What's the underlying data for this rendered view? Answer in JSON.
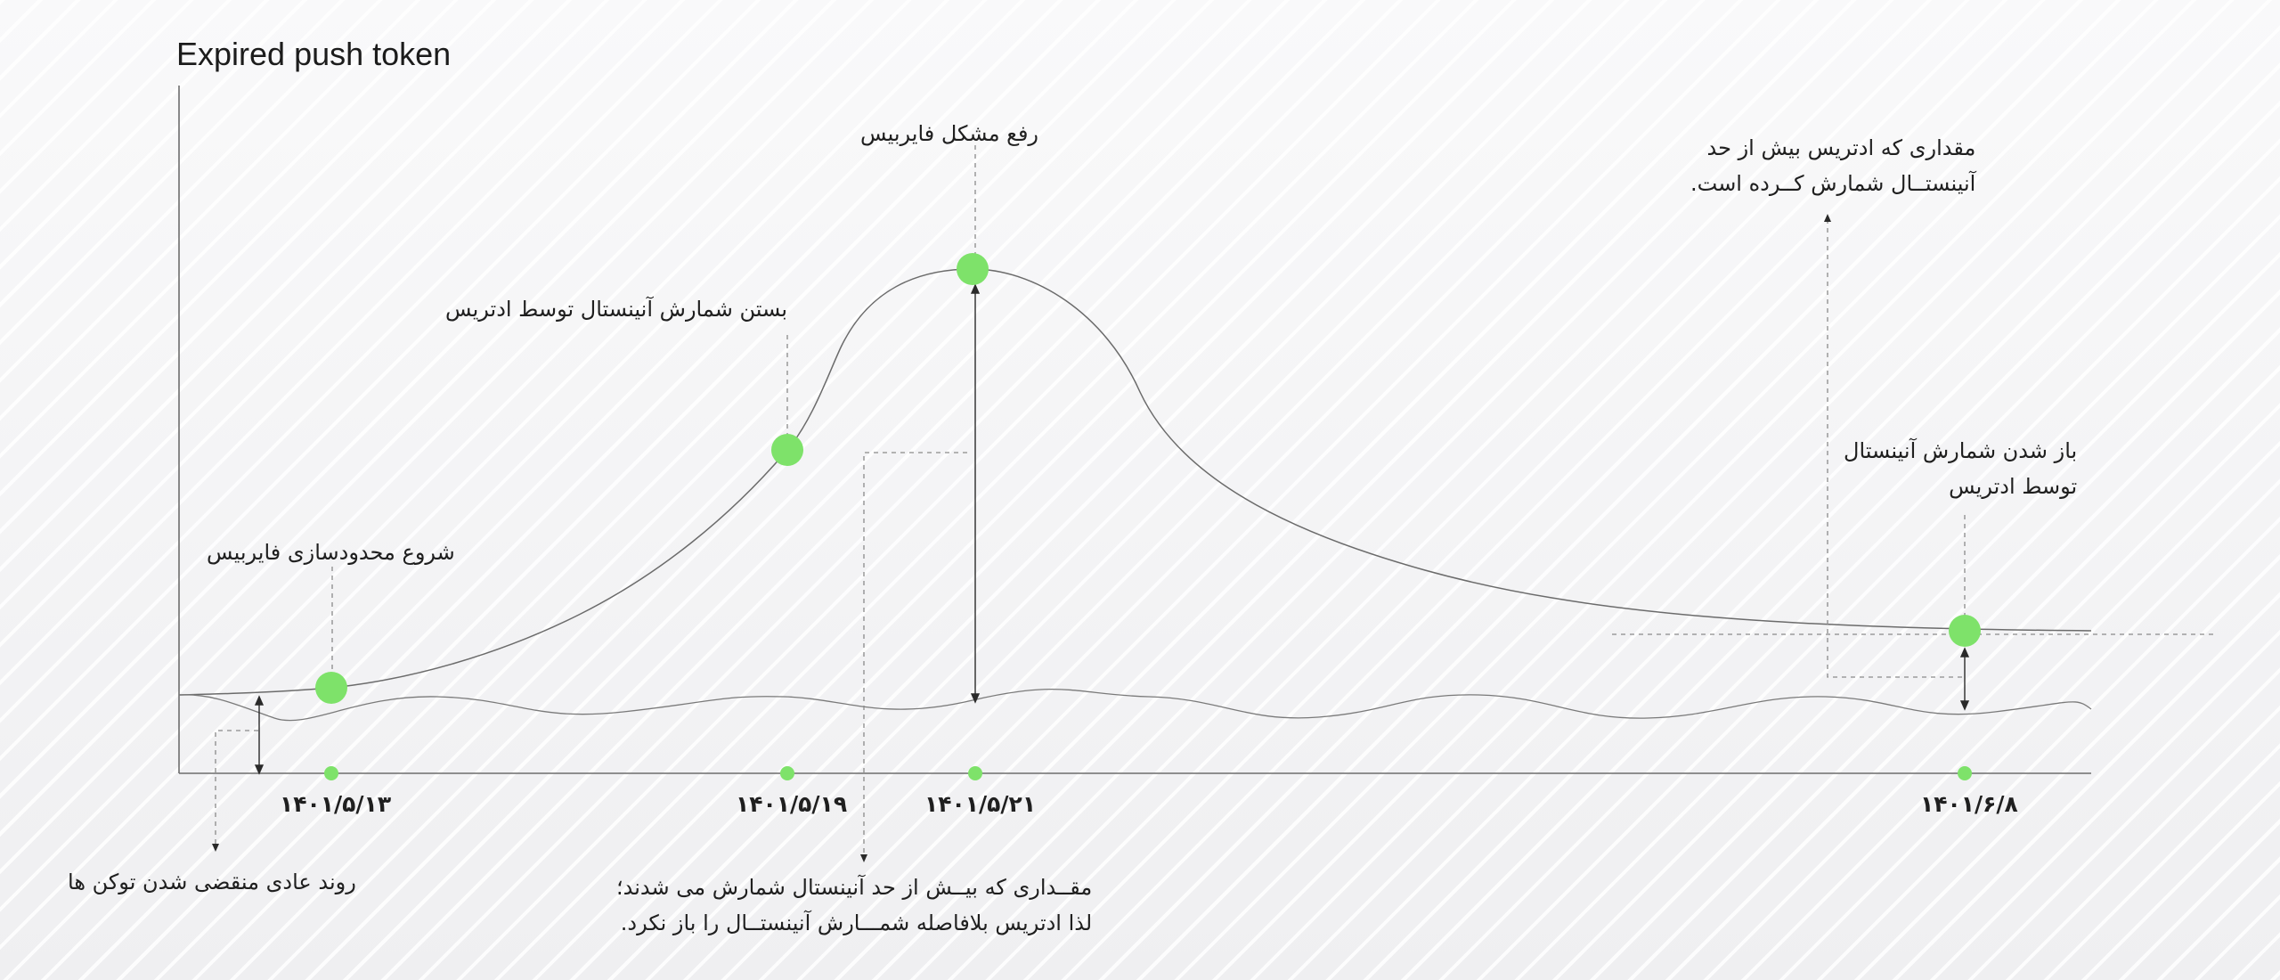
{
  "chart_data": {
    "type": "line",
    "title": "Expired push token",
    "xlabel": "",
    "ylabel": "",
    "grid": false,
    "legend": "none",
    "x_tick_labels": [
      "۱۴۰۱/۵/۱۳",
      "۱۴۰۱/۵/۱۹",
      "۱۴۰۱/۵/۲۱",
      "۱۴۰۱/۶/۸"
    ],
    "series": [
      {
        "points": [
          [
            0,
            0.3
          ],
          [
            0.03,
            0.3
          ],
          [
            0.08,
            0.31
          ],
          [
            0.16,
            0.36
          ],
          [
            0.27,
            0.52
          ],
          [
            0.32,
            0.64
          ],
          [
            0.37,
            0.8
          ],
          [
            0.41,
            0.88
          ],
          [
            0.44,
            0.9
          ],
          [
            0.47,
            0.88
          ],
          [
            0.5,
            0.8
          ],
          [
            0.55,
            0.68
          ],
          [
            0.62,
            0.53
          ],
          [
            0.7,
            0.43
          ],
          [
            0.8,
            0.38
          ],
          [
            0.9,
            0.36
          ],
          [
            1.0,
            0.355
          ]
        ]
      },
      {
        "points": [
          [
            0,
            0.3
          ],
          [
            0.04,
            0.29
          ],
          [
            0.08,
            0.27
          ],
          [
            0.12,
            0.3
          ],
          [
            0.16,
            0.28
          ],
          [
            0.2,
            0.27
          ],
          [
            0.24,
            0.3
          ],
          [
            0.28,
            0.27
          ],
          [
            0.32,
            0.27
          ],
          [
            0.36,
            0.3
          ],
          [
            0.4,
            0.28
          ],
          [
            0.44,
            0.27
          ],
          [
            0.48,
            0.3
          ],
          [
            0.52,
            0.28
          ],
          [
            0.56,
            0.27
          ],
          [
            0.6,
            0.3
          ],
          [
            0.64,
            0.28
          ],
          [
            0.68,
            0.27
          ],
          [
            0.72,
            0.3
          ],
          [
            0.76,
            0.28
          ],
          [
            0.8,
            0.27
          ],
          [
            0.84,
            0.3
          ],
          [
            0.88,
            0.28
          ],
          [
            0.92,
            0.27
          ],
          [
            0.96,
            0.3
          ],
          [
            1.0,
            0.28
          ]
        ]
      }
    ],
    "accent_color": "#7ee26a",
    "line_color": "#6b6b6b",
    "events": [
      {
        "label": "شروع محدودسازی فایربیس",
        "date": "۱۴۰۱/۵/۱۳"
      },
      {
        "label": "بستن شمارش آنینستال توسط ادتریس",
        "date": "۱۴۰۱/۵/۱۹"
      },
      {
        "label": "رفع مشکل فایربیس",
        "date": "۱۴۰۱/۵/۲۱"
      },
      {
        "label_lines": [
          "باز شدن شمارش آنینستال",
          "توسط ادتریس"
        ],
        "date": "۱۴۰۱/۶/۸"
      }
    ],
    "notes": [
      {
        "lines": [
          "روند عادی منقضی شدن توکن ها"
        ]
      },
      {
        "lines": [
          "مقــداری که بیــش از حد آنینستال شمارش می شدند؛",
          "لذا ادتریس بلافاصله شمـــارش آنینستــال را باز نکرد."
        ]
      },
      {
        "lines": [
          "مقداری که ادتریس بیش از حد",
          "آنینستــال شمارش کــرده است."
        ]
      }
    ]
  }
}
